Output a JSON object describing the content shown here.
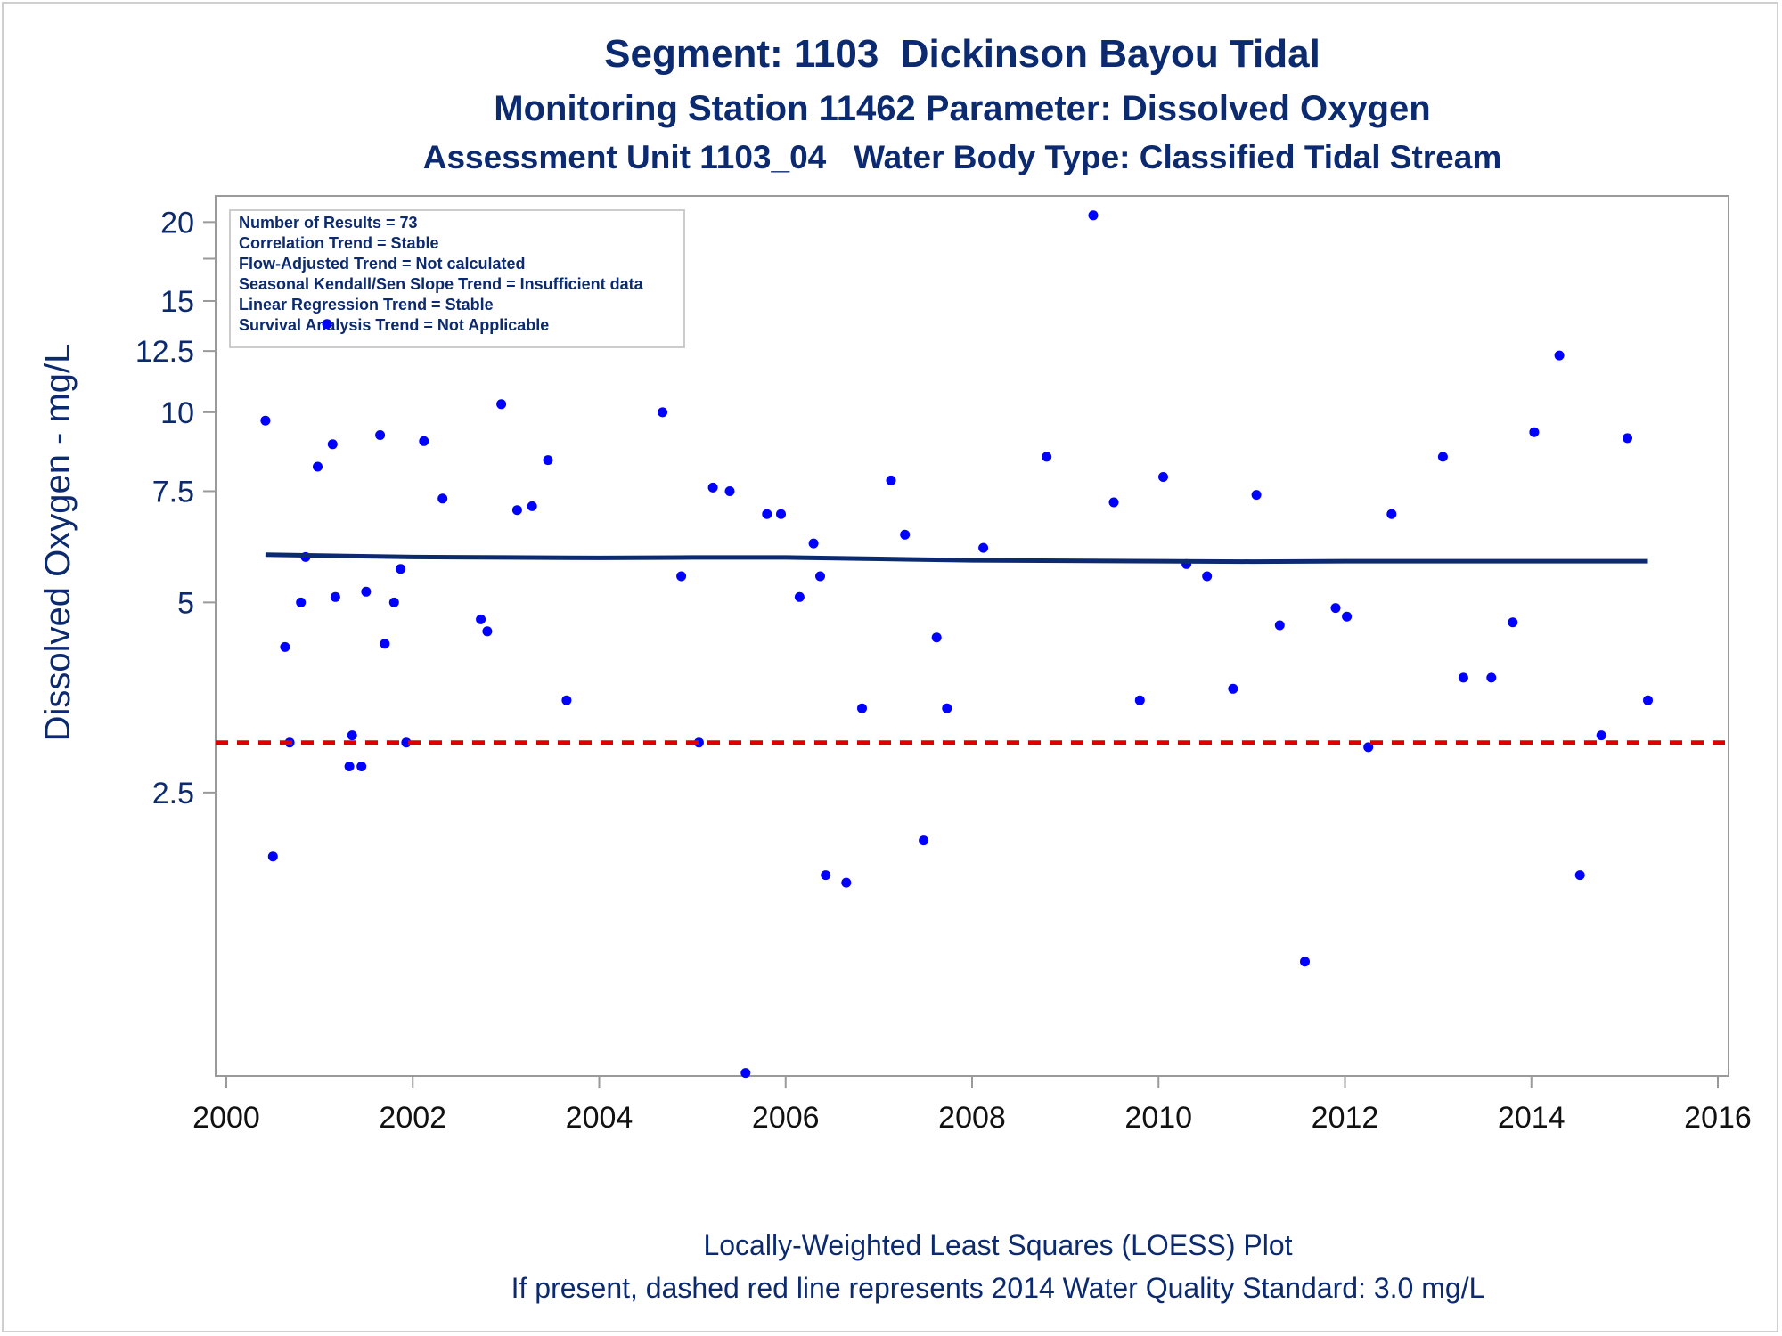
{
  "colors": {
    "title": "#0b2a6f",
    "points": "#0000ff",
    "loess": "#0b2a6f",
    "standard": "#dd0000",
    "axis": "#9a9a9a"
  },
  "chart_data": {
    "type": "scatter",
    "title": "Segment: 1103  Dickinson Bayou Tidal",
    "subtitle": "Monitoring Station 11462 Parameter: Dissolved Oxygen",
    "subtitle2": "Assessment Unit 1103_04   Water Body Type: Classified Tidal Stream",
    "ylabel": "Dissolved Oxygen - mg/L",
    "xlabel": "",
    "y_scale": "log",
    "xlim": [
      2000,
      2016
    ],
    "ylim": [
      0.89,
      22
    ],
    "x_ticks": [
      2000,
      2002,
      2004,
      2006,
      2008,
      2010,
      2012,
      2014,
      2016
    ],
    "y_ticks": [
      {
        "value": 2.5,
        "label": "2.5"
      },
      {
        "value": 5,
        "label": "5"
      },
      {
        "value": 7.5,
        "label": "7.5"
      },
      {
        "value": 10,
        "label": "10"
      },
      {
        "value": 12.5,
        "label": "12.5"
      },
      {
        "value": 15,
        "label": "15"
      },
      {
        "value": 17.5,
        "label": ""
      },
      {
        "value": 20,
        "label": "20"
      }
    ],
    "stats_box": [
      "Number of Results = 73",
      "Correlation Trend = Stable",
      "Flow-Adjusted Trend = Not calculated",
      "Seasonal Kendall/Sen Slope Trend = Insufficient data",
      "Linear Regression Trend = Stable",
      "Survival Analysis Trend = Not Applicable"
    ],
    "legend_position": "top-left",
    "series": [
      {
        "type": "scatter",
        "points": [
          [
            2000.42,
            9.7
          ],
          [
            2000.5,
            1.98
          ],
          [
            2000.63,
            4.25
          ],
          [
            2000.68,
            3.0
          ],
          [
            2000.8,
            5.0
          ],
          [
            2000.85,
            5.9
          ],
          [
            2000.98,
            8.2
          ],
          [
            2001.08,
            13.8
          ],
          [
            2001.14,
            8.9
          ],
          [
            2001.17,
            5.1
          ],
          [
            2001.32,
            2.75
          ],
          [
            2001.35,
            3.08
          ],
          [
            2001.45,
            2.75
          ],
          [
            2001.5,
            5.2
          ],
          [
            2001.65,
            9.2
          ],
          [
            2001.7,
            4.3
          ],
          [
            2001.8,
            5.0
          ],
          [
            2001.87,
            5.65
          ],
          [
            2001.93,
            3.0
          ],
          [
            2002.12,
            9.0
          ],
          [
            2002.32,
            7.3
          ],
          [
            2002.73,
            4.7
          ],
          [
            2002.8,
            4.5
          ],
          [
            2002.95,
            10.3
          ],
          [
            2003.12,
            7.0
          ],
          [
            2003.28,
            7.1
          ],
          [
            2003.45,
            8.4
          ],
          [
            2003.65,
            3.5
          ],
          [
            2004.68,
            10.0
          ],
          [
            2004.88,
            5.5
          ],
          [
            2005.07,
            3.0
          ],
          [
            2005.22,
            7.6
          ],
          [
            2005.4,
            7.5
          ],
          [
            2005.57,
            0.9
          ],
          [
            2005.8,
            6.9
          ],
          [
            2005.95,
            6.9
          ],
          [
            2006.15,
            5.1
          ],
          [
            2006.3,
            6.2
          ],
          [
            2006.37,
            5.5
          ],
          [
            2006.43,
            1.85
          ],
          [
            2006.65,
            1.8
          ],
          [
            2006.82,
            3.4
          ],
          [
            2007.13,
            7.8
          ],
          [
            2007.28,
            6.4
          ],
          [
            2007.48,
            2.1
          ],
          [
            2007.62,
            4.4
          ],
          [
            2007.73,
            3.4
          ],
          [
            2008.12,
            6.1
          ],
          [
            2008.8,
            8.5
          ],
          [
            2009.3,
            20.5
          ],
          [
            2009.52,
            7.2
          ],
          [
            2009.8,
            3.5
          ],
          [
            2010.05,
            7.9
          ],
          [
            2010.3,
            5.75
          ],
          [
            2010.52,
            5.5
          ],
          [
            2010.8,
            3.65
          ],
          [
            2011.05,
            7.4
          ],
          [
            2011.3,
            4.6
          ],
          [
            2011.57,
            1.35
          ],
          [
            2011.9,
            4.9
          ],
          [
            2012.02,
            4.75
          ],
          [
            2012.25,
            2.95
          ],
          [
            2012.5,
            6.9
          ],
          [
            2013.05,
            8.5
          ],
          [
            2013.27,
            3.8
          ],
          [
            2013.57,
            3.8
          ],
          [
            2013.8,
            4.65
          ],
          [
            2014.03,
            9.3
          ],
          [
            2014.3,
            12.3
          ],
          [
            2014.52,
            1.85
          ],
          [
            2014.75,
            3.08
          ],
          [
            2015.03,
            9.1
          ],
          [
            2015.25,
            3.5
          ]
        ]
      },
      {
        "type": "line",
        "points": [
          [
            2000.42,
            5.95
          ],
          [
            2001.0,
            5.93
          ],
          [
            2002.0,
            5.9
          ],
          [
            2003.0,
            5.89
          ],
          [
            2004.0,
            5.88
          ],
          [
            2005.0,
            5.89
          ],
          [
            2006.0,
            5.89
          ],
          [
            2007.0,
            5.86
          ],
          [
            2008.0,
            5.83
          ],
          [
            2009.0,
            5.82
          ],
          [
            2010.0,
            5.81
          ],
          [
            2011.0,
            5.8
          ],
          [
            2012.0,
            5.81
          ],
          [
            2013.0,
            5.81
          ],
          [
            2014.0,
            5.81
          ],
          [
            2015.25,
            5.81
          ]
        ]
      },
      {
        "type": "reference-line",
        "y": 3.0
      }
    ]
  },
  "footer": {
    "line1": "Locally-Weighted Least Squares (LOESS) Plot",
    "line2": "If present, dashed red line represents 2014 Water Quality Standard: 3.0 mg/L"
  }
}
